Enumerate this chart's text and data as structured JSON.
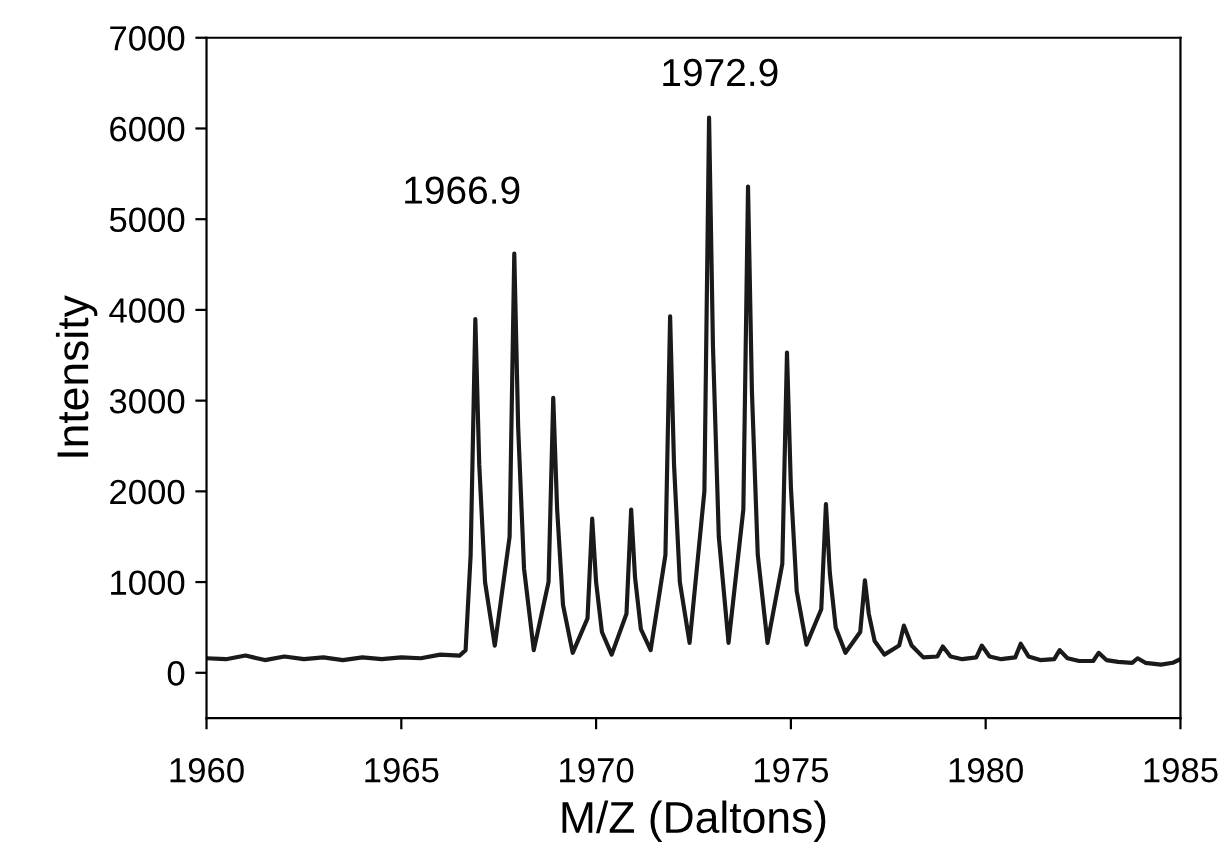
{
  "chart_data": {
    "type": "line",
    "xlabel": "M/Z (Daltons)",
    "ylabel": "Intensity",
    "xlim": [
      1960,
      1985
    ],
    "xticks": [
      1960,
      1965,
      1970,
      1975,
      1980,
      1985
    ],
    "ylim": [
      -500,
      7000
    ],
    "yticks": [
      0,
      1000,
      2000,
      3000,
      4000,
      5000,
      6000,
      7000
    ],
    "grid": false,
    "legend": false,
    "marker": "none",
    "line_style": "solid",
    "annotations": [
      "1966.9",
      "1972.9"
    ],
    "series": [
      {
        "color": "#1a1a1a",
        "x": [
          1960,
          1960.5,
          1961,
          1961.5,
          1962,
          1962.5,
          1963,
          1963.5,
          1964,
          1964.5,
          1965,
          1965.5,
          1966,
          1966.5,
          1966.65,
          1966.78,
          1966.9,
          1967.0,
          1967.15,
          1967.4,
          1967.78,
          1967.9,
          1968.0,
          1968.15,
          1968.4,
          1968.78,
          1968.9,
          1969.0,
          1969.15,
          1969.4,
          1969.78,
          1969.9,
          1970.0,
          1970.15,
          1970.4,
          1970.78,
          1970.9,
          1971.0,
          1971.15,
          1971.4,
          1971.78,
          1971.9,
          1972.0,
          1972.15,
          1972.4,
          1972.78,
          1972.9,
          1973.0,
          1973.15,
          1973.4,
          1973.78,
          1973.9,
          1974.0,
          1974.15,
          1974.4,
          1974.78,
          1974.9,
          1975.0,
          1975.15,
          1975.4,
          1975.78,
          1975.9,
          1976.0,
          1976.15,
          1976.4,
          1976.78,
          1976.9,
          1977.0,
          1977.15,
          1977.4,
          1977.78,
          1977.9,
          1978.1,
          1978.4,
          1978.76,
          1978.9,
          1979.1,
          1979.4,
          1979.76,
          1979.9,
          1980.1,
          1980.4,
          1980.76,
          1980.9,
          1981.1,
          1981.4,
          1981.76,
          1981.9,
          1982.1,
          1982.4,
          1982.76,
          1982.9,
          1983.1,
          1983.4,
          1983.76,
          1983.9,
          1984.1,
          1984.5,
          1984.8,
          1985
        ],
        "values": [
          160,
          150,
          190,
          140,
          180,
          150,
          170,
          140,
          170,
          150,
          170,
          160,
          200,
          190,
          250,
          1300,
          3900,
          2300,
          1000,
          300,
          1500,
          4620,
          2700,
          1150,
          250,
          1000,
          3030,
          1800,
          750,
          220,
          600,
          1700,
          1000,
          450,
          200,
          650,
          1800,
          1050,
          480,
          250,
          1300,
          3930,
          2300,
          1000,
          330,
          2000,
          6120,
          3600,
          1500,
          330,
          1800,
          5360,
          3100,
          1300,
          330,
          1200,
          3530,
          2050,
          900,
          310,
          700,
          1860,
          1100,
          500,
          220,
          450,
          1020,
          650,
          350,
          200,
          300,
          520,
          300,
          170,
          180,
          290,
          180,
          150,
          170,
          300,
          180,
          150,
          170,
          320,
          180,
          140,
          150,
          250,
          160,
          130,
          130,
          220,
          140,
          120,
          110,
          160,
          110,
          90,
          110,
          150
        ]
      }
    ]
  }
}
